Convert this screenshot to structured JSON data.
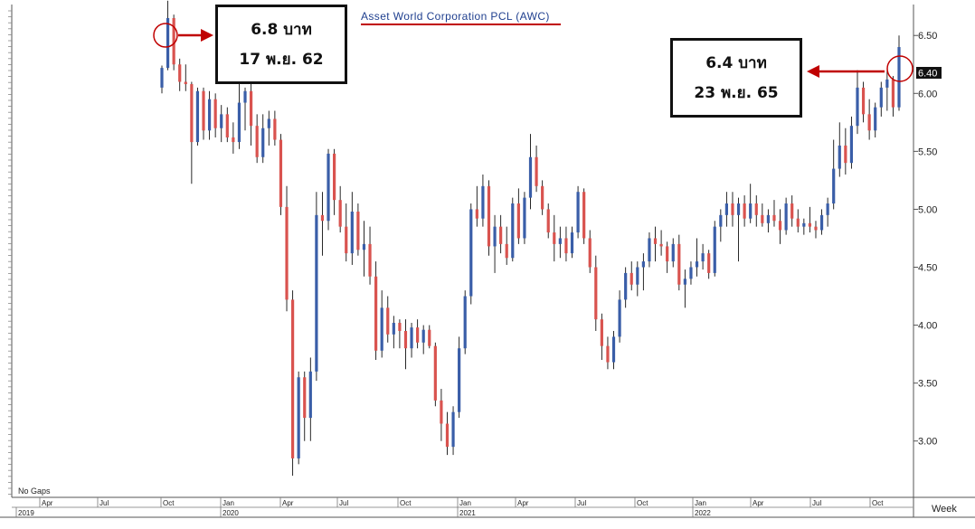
{
  "chart_data": {
    "type": "candlestick",
    "title": "Asset World Corporation PCL (AWC)",
    "period": "Week",
    "gaps_label": "No Gaps",
    "ylim": [
      2.6,
      6.75
    ],
    "y_ticks": [
      "3.00",
      "3.50",
      "4.00",
      "4.50",
      "5.00",
      "5.50",
      "6.00",
      "6.50"
    ],
    "last_price_label": "6.40",
    "month_ticks": [
      "Apr",
      "Jul",
      "Oct",
      "Jan",
      "Apr",
      "Jul",
      "Oct",
      "Jan",
      "Apr",
      "Jul",
      "Oct",
      "Jan",
      "Apr",
      "Jul",
      "Oct"
    ],
    "year_labels": [
      "2019",
      "2020",
      "2021",
      "2022"
    ],
    "colors": {
      "up": "#3a5ea8",
      "down": "#d9534f",
      "wick": "#111111",
      "annotation": "#c00000"
    },
    "candles": [
      [
        6.05,
        6.24,
        6.0,
        6.22
      ],
      [
        6.22,
        6.8,
        6.2,
        6.65
      ],
      [
        6.65,
        6.68,
        6.2,
        6.25
      ],
      [
        6.25,
        6.3,
        6.02,
        6.1
      ],
      [
        6.1,
        6.25,
        6.02,
        6.08
      ],
      [
        6.08,
        6.1,
        5.22,
        5.58
      ],
      [
        5.58,
        6.05,
        5.55,
        6.02
      ],
      [
        6.02,
        6.05,
        5.6,
        5.68
      ],
      [
        5.68,
        6.02,
        5.6,
        5.95
      ],
      [
        5.95,
        6.0,
        5.62,
        5.7
      ],
      [
        5.7,
        5.9,
        5.58,
        5.82
      ],
      [
        5.82,
        5.88,
        5.58,
        5.62
      ],
      [
        5.62,
        5.75,
        5.48,
        5.58
      ],
      [
        5.58,
        6.25,
        5.52,
        5.92
      ],
      [
        5.92,
        6.05,
        5.68,
        6.02
      ],
      [
        6.02,
        6.1,
        5.55,
        5.72
      ],
      [
        5.72,
        5.82,
        5.4,
        5.45
      ],
      [
        5.45,
        5.82,
        5.4,
        5.7
      ],
      [
        5.7,
        5.85,
        5.55,
        5.78
      ],
      [
        5.78,
        5.85,
        5.55,
        5.6
      ],
      [
        5.6,
        5.65,
        4.95,
        5.02
      ],
      [
        5.02,
        5.2,
        4.12,
        4.22
      ],
      [
        4.22,
        4.3,
        2.7,
        2.85
      ],
      [
        2.85,
        3.6,
        2.8,
        3.55
      ],
      [
        3.55,
        3.6,
        3.0,
        3.2
      ],
      [
        3.2,
        3.72,
        3.0,
        3.6
      ],
      [
        3.6,
        5.15,
        3.52,
        4.95
      ],
      [
        4.95,
        5.15,
        4.6,
        4.9
      ],
      [
        4.9,
        5.52,
        4.82,
        5.48
      ],
      [
        5.48,
        5.52,
        4.95,
        5.08
      ],
      [
        5.08,
        5.2,
        4.8,
        4.85
      ],
      [
        4.85,
        5.05,
        4.55,
        4.62
      ],
      [
        4.62,
        5.15,
        4.52,
        4.98
      ],
      [
        4.98,
        5.05,
        4.6,
        4.65
      ],
      [
        4.65,
        4.9,
        4.42,
        4.7
      ],
      [
        4.7,
        4.85,
        4.35,
        4.42
      ],
      [
        4.42,
        4.55,
        3.7,
        3.78
      ],
      [
        3.78,
        4.3,
        3.72,
        4.15
      ],
      [
        4.15,
        4.25,
        3.85,
        3.92
      ],
      [
        3.92,
        4.08,
        3.8,
        4.02
      ],
      [
        4.02,
        4.05,
        3.8,
        3.95
      ],
      [
        3.95,
        4.05,
        3.62,
        3.8
      ],
      [
        3.8,
        4.02,
        3.72,
        3.98
      ],
      [
        3.98,
        4.05,
        3.8,
        3.85
      ],
      [
        3.85,
        4.0,
        3.75,
        3.96
      ],
      [
        3.96,
        4.0,
        3.8,
        3.82
      ],
      [
        3.82,
        3.85,
        3.3,
        3.35
      ],
      [
        3.35,
        3.45,
        3.0,
        3.15
      ],
      [
        3.15,
        3.25,
        2.88,
        2.95
      ],
      [
        2.95,
        3.3,
        2.88,
        3.25
      ],
      [
        3.25,
        3.9,
        3.2,
        3.8
      ],
      [
        3.8,
        4.3,
        3.75,
        4.25
      ],
      [
        4.25,
        5.05,
        4.18,
        5.0
      ],
      [
        5.0,
        5.2,
        4.85,
        4.92
      ],
      [
        4.92,
        5.3,
        4.85,
        5.2
      ],
      [
        5.2,
        5.25,
        4.6,
        4.68
      ],
      [
        4.68,
        4.95,
        4.45,
        4.85
      ],
      [
        4.85,
        4.95,
        4.62,
        4.7
      ],
      [
        4.7,
        4.85,
        4.52,
        4.58
      ],
      [
        4.58,
        5.1,
        4.55,
        5.05
      ],
      [
        5.05,
        5.18,
        4.7,
        4.75
      ],
      [
        4.75,
        5.15,
        4.7,
        5.1
      ],
      [
        5.1,
        5.65,
        5.0,
        5.45
      ],
      [
        5.45,
        5.55,
        5.15,
        5.2
      ],
      [
        5.2,
        5.25,
        4.95,
        5.0
      ],
      [
        5.0,
        5.05,
        4.75,
        4.8
      ],
      [
        4.8,
        4.95,
        4.55,
        4.7
      ],
      [
        4.7,
        4.85,
        4.58,
        4.75
      ],
      [
        4.75,
        4.85,
        4.55,
        4.62
      ],
      [
        4.62,
        4.85,
        4.58,
        4.8
      ],
      [
        4.8,
        5.2,
        4.75,
        5.15
      ],
      [
        5.15,
        5.18,
        4.7,
        4.75
      ],
      [
        4.75,
        4.82,
        4.45,
        4.5
      ],
      [
        4.5,
        4.6,
        3.95,
        4.05
      ],
      [
        4.05,
        4.1,
        3.7,
        3.82
      ],
      [
        3.82,
        3.9,
        3.62,
        3.68
      ],
      [
        3.68,
        3.95,
        3.62,
        3.9
      ],
      [
        3.9,
        4.3,
        3.85,
        4.22
      ],
      [
        4.22,
        4.5,
        4.15,
        4.45
      ],
      [
        4.45,
        4.55,
        4.3,
        4.35
      ],
      [
        4.35,
        4.55,
        4.25,
        4.5
      ],
      [
        4.5,
        4.62,
        4.3,
        4.55
      ],
      [
        4.55,
        4.8,
        4.5,
        4.75
      ],
      [
        4.75,
        4.85,
        4.55,
        4.7
      ],
      [
        4.7,
        4.82,
        4.6,
        4.68
      ],
      [
        4.68,
        4.72,
        4.45,
        4.55
      ],
      [
        4.55,
        4.75,
        4.5,
        4.7
      ],
      [
        4.7,
        4.78,
        4.3,
        4.35
      ],
      [
        4.35,
        4.48,
        4.15,
        4.4
      ],
      [
        4.4,
        4.55,
        4.35,
        4.5
      ],
      [
        4.5,
        4.75,
        4.42,
        4.55
      ],
      [
        4.55,
        4.7,
        4.48,
        4.62
      ],
      [
        4.62,
        4.65,
        4.4,
        4.45
      ],
      [
        4.45,
        4.9,
        4.42,
        4.85
      ],
      [
        4.85,
        5.0,
        4.72,
        4.95
      ],
      [
        4.95,
        5.15,
        4.85,
        5.05
      ],
      [
        5.05,
        5.15,
        4.85,
        4.95
      ],
      [
        4.95,
        5.1,
        4.55,
        5.05
      ],
      [
        5.05,
        5.12,
        4.85,
        4.92
      ],
      [
        4.92,
        5.22,
        4.88,
        5.05
      ],
      [
        5.05,
        5.12,
        4.85,
        4.95
      ],
      [
        4.95,
        5.05,
        4.85,
        4.88
      ],
      [
        4.88,
        5.0,
        4.8,
        4.95
      ],
      [
        4.95,
        5.08,
        4.85,
        4.9
      ],
      [
        4.9,
        5.0,
        4.7,
        4.82
      ],
      [
        4.82,
        5.1,
        4.78,
        5.05
      ],
      [
        5.05,
        5.12,
        4.85,
        4.92
      ],
      [
        4.92,
        5.0,
        4.8,
        4.85
      ],
      [
        4.85,
        4.92,
        4.78,
        4.88
      ],
      [
        4.88,
        5.02,
        4.8,
        4.85
      ],
      [
        4.85,
        4.9,
        4.75,
        4.82
      ],
      [
        4.82,
        5.0,
        4.78,
        4.95
      ],
      [
        4.95,
        5.1,
        4.85,
        5.05
      ],
      [
        5.05,
        5.6,
        5.0,
        5.35
      ],
      [
        5.35,
        5.75,
        5.28,
        5.55
      ],
      [
        5.55,
        5.7,
        5.3,
        5.4
      ],
      [
        5.4,
        5.8,
        5.35,
        5.72
      ],
      [
        5.72,
        6.2,
        5.65,
        6.05
      ],
      [
        6.05,
        6.1,
        5.75,
        5.82
      ],
      [
        5.82,
        5.95,
        5.6,
        5.68
      ],
      [
        5.68,
        5.92,
        5.62,
        5.88
      ],
      [
        5.88,
        6.1,
        5.8,
        6.05
      ],
      [
        6.05,
        6.2,
        5.85,
        6.12
      ],
      [
        6.12,
        6.15,
        5.8,
        5.88
      ],
      [
        5.88,
        6.5,
        5.85,
        6.4
      ]
    ],
    "annotations": [
      {
        "price_label": "6.8 บาท",
        "date_label": "17 พ.ย. 62"
      },
      {
        "price_label": "6.4 บาท",
        "date_label": "23 พ.ย. 65"
      }
    ]
  }
}
